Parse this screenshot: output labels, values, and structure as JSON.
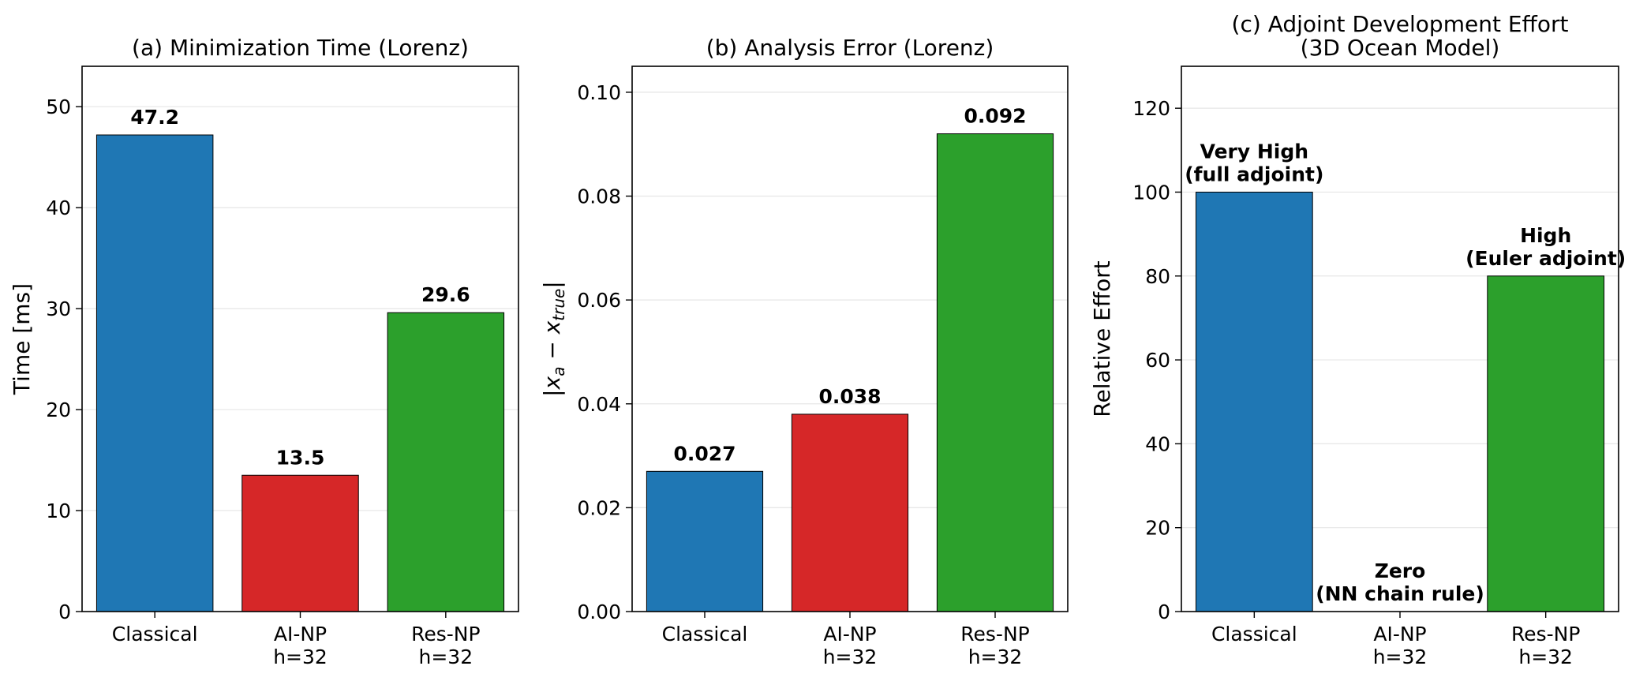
{
  "chart_data": [
    {
      "type": "bar",
      "title": "(a) Minimization Time (Lorenz)",
      "title_lines": [
        "(a) Minimization Time (Lorenz)"
      ],
      "ylabel": "Time [ms]",
      "categories": [
        "Classical",
        "AI-NP h=32",
        "Res-NP h=32"
      ],
      "category_lines": [
        [
          "Classical"
        ],
        [
          "AI-NP",
          "h=32"
        ],
        [
          "Res-NP",
          "h=32"
        ]
      ],
      "values": [
        47.2,
        13.5,
        29.6
      ],
      "bar_labels": [
        [
          "47.2"
        ],
        [
          "13.5"
        ],
        [
          "29.6"
        ]
      ],
      "colors": [
        "#1f77b4",
        "#d62728",
        "#2ca02c"
      ],
      "ylim": [
        0,
        54
      ],
      "yticks": [
        0,
        10,
        20,
        30,
        40,
        50
      ],
      "ytick_labels": [
        "0",
        "10",
        "20",
        "30",
        "40",
        "50"
      ],
      "grid": "y"
    },
    {
      "type": "bar",
      "title": "(b) Analysis Error (Lorenz)",
      "title_lines": [
        "(b) Analysis Error (Lorenz)"
      ],
      "ylabel": "|x_a − x_true|",
      "ylabel_parts": {
        "bar": "|",
        "x": "x",
        "sub_a": "a",
        "minus": " − ",
        "sub_true": "true"
      },
      "categories": [
        "Classical",
        "AI-NP h=32",
        "Res-NP h=32"
      ],
      "category_lines": [
        [
          "Classical"
        ],
        [
          "AI-NP",
          "h=32"
        ],
        [
          "Res-NP",
          "h=32"
        ]
      ],
      "values": [
        0.027,
        0.038,
        0.092
      ],
      "bar_labels": [
        [
          "0.027"
        ],
        [
          "0.038"
        ],
        [
          "0.092"
        ]
      ],
      "colors": [
        "#1f77b4",
        "#d62728",
        "#2ca02c"
      ],
      "ylim": [
        0,
        0.105
      ],
      "yticks": [
        0,
        0.02,
        0.04,
        0.06,
        0.08,
        0.1
      ],
      "ytick_labels": [
        "0.00",
        "0.02",
        "0.04",
        "0.06",
        "0.08",
        "0.10"
      ],
      "grid": "y"
    },
    {
      "type": "bar",
      "title": "(c) Adjoint Development Effort (3D Ocean Model)",
      "title_lines": [
        "(c) Adjoint Development Effort",
        "(3D Ocean Model)"
      ],
      "ylabel": "Relative Effort",
      "categories": [
        "Classical",
        "AI-NP h=32",
        "Res-NP h=32"
      ],
      "category_lines": [
        [
          "Classical"
        ],
        [
          "AI-NP",
          "h=32"
        ],
        [
          "Res-NP",
          "h=32"
        ]
      ],
      "values": [
        100,
        0,
        80
      ],
      "bar_labels": [
        [
          "Very High",
          "(full adjoint)"
        ],
        [
          "Zero",
          "(NN chain rule)"
        ],
        [
          "High",
          "(Euler adjoint)"
        ]
      ],
      "colors": [
        "#1f77b4",
        "#d62728",
        "#2ca02c"
      ],
      "ylim": [
        0,
        130
      ],
      "yticks": [
        0,
        20,
        40,
        60,
        80,
        100,
        120
      ],
      "ytick_labels": [
        "0",
        "20",
        "40",
        "60",
        "80",
        "100",
        "120"
      ],
      "grid": "y"
    }
  ]
}
